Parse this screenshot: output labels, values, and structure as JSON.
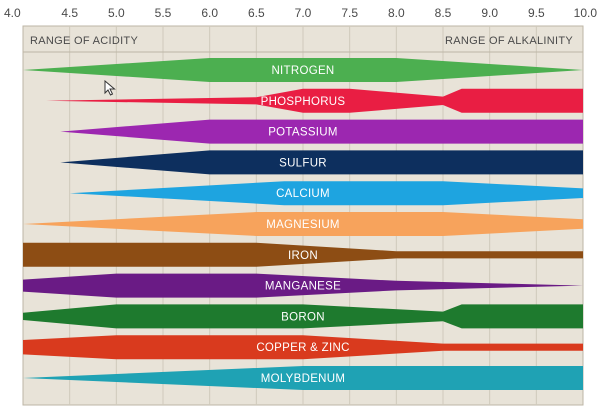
{
  "chart_data": {
    "type": "area",
    "x_ticks": [
      "4.0",
      "4.5",
      "5.0",
      "5.5",
      "6.0",
      "6.5",
      "7.0",
      "7.5",
      "8.0",
      "8.5",
      "9.0",
      "9.5",
      "10.0"
    ],
    "xlim": [
      4.0,
      10.0
    ],
    "grid": true,
    "left_label": "RANGE OF ACIDITY",
    "right_label": "RANGE OF ALKALINITY",
    "series": [
      {
        "name": "NITROGEN",
        "color": "#4caf50",
        "profile": [
          [
            4.0,
            0
          ],
          [
            6.0,
            1
          ],
          [
            8.0,
            1
          ],
          [
            10.0,
            0
          ]
        ]
      },
      {
        "name": "PHOSPHORUS",
        "color": "#e91e43",
        "profile": [
          [
            4.25,
            0
          ],
          [
            6.5,
            0.3
          ],
          [
            7.0,
            1
          ],
          [
            7.5,
            1
          ],
          [
            8.5,
            0.35
          ],
          [
            8.7,
            1
          ],
          [
            10.0,
            1
          ]
        ]
      },
      {
        "name": "POTASSIUM",
        "color": "#9c27b0",
        "profile": [
          [
            4.4,
            0
          ],
          [
            6.0,
            1
          ],
          [
            10.0,
            1
          ]
        ]
      },
      {
        "name": "SULFUR",
        "color": "#0d2f5e",
        "profile": [
          [
            4.4,
            0
          ],
          [
            6.0,
            1
          ],
          [
            10.0,
            1
          ]
        ]
      },
      {
        "name": "CALCIUM",
        "color": "#1ea4e0",
        "profile": [
          [
            4.5,
            0
          ],
          [
            6.8,
            1
          ],
          [
            8.5,
            1
          ],
          [
            10.0,
            0.4
          ]
        ]
      },
      {
        "name": "MAGNESIUM",
        "color": "#f7a35c",
        "profile": [
          [
            4.0,
            0
          ],
          [
            6.5,
            1
          ],
          [
            8.5,
            1
          ],
          [
            10.0,
            0.4
          ]
        ]
      },
      {
        "name": "IRON",
        "color": "#8d4d14",
        "profile": [
          [
            4.0,
            1
          ],
          [
            6.5,
            1
          ],
          [
            8.0,
            0.3
          ],
          [
            10.0,
            0.3
          ]
        ]
      },
      {
        "name": "MANGANESE",
        "color": "#6a1b85",
        "profile": [
          [
            4.0,
            0.5
          ],
          [
            5.0,
            1
          ],
          [
            6.5,
            1
          ],
          [
            8.0,
            0.4
          ],
          [
            10.0,
            0
          ]
        ]
      },
      {
        "name": "BORON",
        "color": "#1e7a2e",
        "profile": [
          [
            4.0,
            0.3
          ],
          [
            5.0,
            1
          ],
          [
            7.0,
            1
          ],
          [
            8.5,
            0.4
          ],
          [
            8.7,
            1
          ],
          [
            10.0,
            1
          ]
        ]
      },
      {
        "name": "COPPER & ZINC",
        "color": "#d93a1e",
        "profile": [
          [
            4.0,
            0.6
          ],
          [
            5.0,
            1
          ],
          [
            7.0,
            1
          ],
          [
            8.5,
            0.3
          ],
          [
            10.0,
            0.3
          ]
        ]
      },
      {
        "name": "MOLYBDENUM",
        "color": "#1fa2b4",
        "profile": [
          [
            4.0,
            0
          ],
          [
            7.0,
            1
          ],
          [
            10.0,
            1
          ]
        ]
      }
    ]
  },
  "colors": {
    "background": "#e8e3d8",
    "grid": "#cfc9bb",
    "frame": "#bdb6a6"
  },
  "icons": {
    "cursor": "mouse-pointer-icon"
  }
}
